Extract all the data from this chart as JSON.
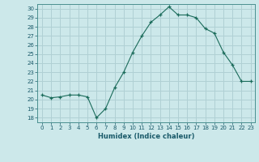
{
  "x": [
    0,
    1,
    2,
    3,
    4,
    5,
    6,
    7,
    8,
    9,
    10,
    11,
    12,
    13,
    14,
    15,
    16,
    17,
    18,
    19,
    20,
    21,
    22,
    23
  ],
  "y": [
    20.5,
    20.2,
    20.3,
    20.5,
    20.5,
    20.3,
    18.0,
    19.0,
    21.3,
    23.0,
    25.2,
    27.0,
    28.5,
    29.3,
    30.2,
    29.3,
    29.3,
    29.0,
    27.8,
    27.3,
    25.2,
    23.8,
    22.0,
    22.0
  ],
  "line_color": "#1a6b5a",
  "marker": "+",
  "marker_size": 3,
  "bg_color": "#cce8ea",
  "grid_color": "#b0d0d4",
  "xlabel": "Humidex (Indice chaleur)",
  "xlim": [
    -0.5,
    23.5
  ],
  "ylim": [
    17.5,
    30.5
  ],
  "yticks": [
    18,
    19,
    20,
    21,
    22,
    23,
    24,
    25,
    26,
    27,
    28,
    29,
    30
  ],
  "xticks": [
    0,
    1,
    2,
    3,
    4,
    5,
    6,
    7,
    8,
    9,
    10,
    11,
    12,
    13,
    14,
    15,
    16,
    17,
    18,
    19,
    20,
    21,
    22,
    23
  ],
  "font_color": "#1a5a6a",
  "axis_color": "#4a9090",
  "tick_color": "#1a5a6a"
}
